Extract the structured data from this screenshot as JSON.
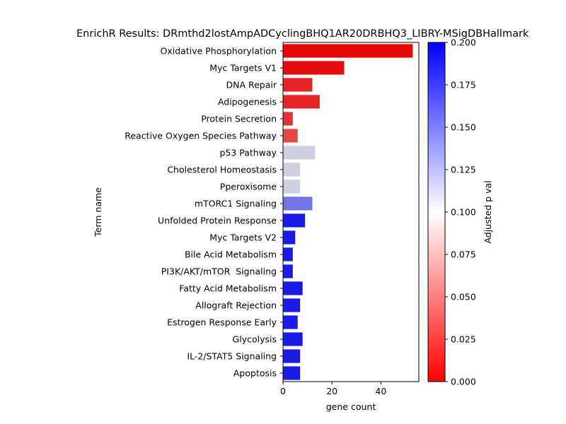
{
  "chart_data": {
    "type": "bar",
    "orientation": "horizontal",
    "title": "EnrichR Results: DRmthd2lostAmpADCyclingBHQ1AR20DRBHQ3_LIBRY-MSigDBHallmark",
    "xlabel": "gene count",
    "ylabel": "Term name",
    "xlim": [
      0,
      55.5
    ],
    "xticks": [
      0,
      20,
      40
    ],
    "categories": [
      "Oxidative Phosphorylation",
      "Myc Targets V1",
      "DNA Repair",
      "Adipogenesis",
      "Protein Secretion",
      "Reactive Oxygen Species Pathway",
      "p53 Pathway",
      "Cholesterol Homeostasis",
      "Pperoxisome",
      "mTORC1 Signaling",
      "Unfolded Protein Response",
      "Myc Targets V2",
      "Bile Acid Metabolism",
      "PI3K/AKT/mTOR  Signaling",
      "Fatty Acid Metabolism",
      "Allograft Rejection",
      "Estrogen Response Early",
      "Glycolysis",
      "IL-2/STAT5 Signaling",
      "Apoptosis"
    ],
    "values": [
      53,
      25,
      12,
      15,
      4,
      6,
      13,
      7,
      7,
      12,
      9,
      5,
      4,
      4,
      8,
      7,
      6,
      8,
      7,
      7
    ],
    "adjusted_p": [
      0.002,
      0.004,
      0.015,
      0.015,
      0.02,
      0.03,
      0.11,
      0.11,
      0.11,
      0.15,
      0.19,
      0.19,
      0.19,
      0.19,
      0.19,
      0.19,
      0.19,
      0.19,
      0.19,
      0.19
    ],
    "colorbar": {
      "label": "Adjusted p val",
      "range": [
        0.0,
        0.2
      ],
      "ticks": [
        "0.000",
        "0.025",
        "0.050",
        "0.075",
        "0.100",
        "0.125",
        "0.150",
        "0.175",
        "0.200"
      ],
      "colors": [
        "#ff0000",
        "#ffffff",
        "#0000ff"
      ]
    },
    "grid": false,
    "legend": "none"
  }
}
